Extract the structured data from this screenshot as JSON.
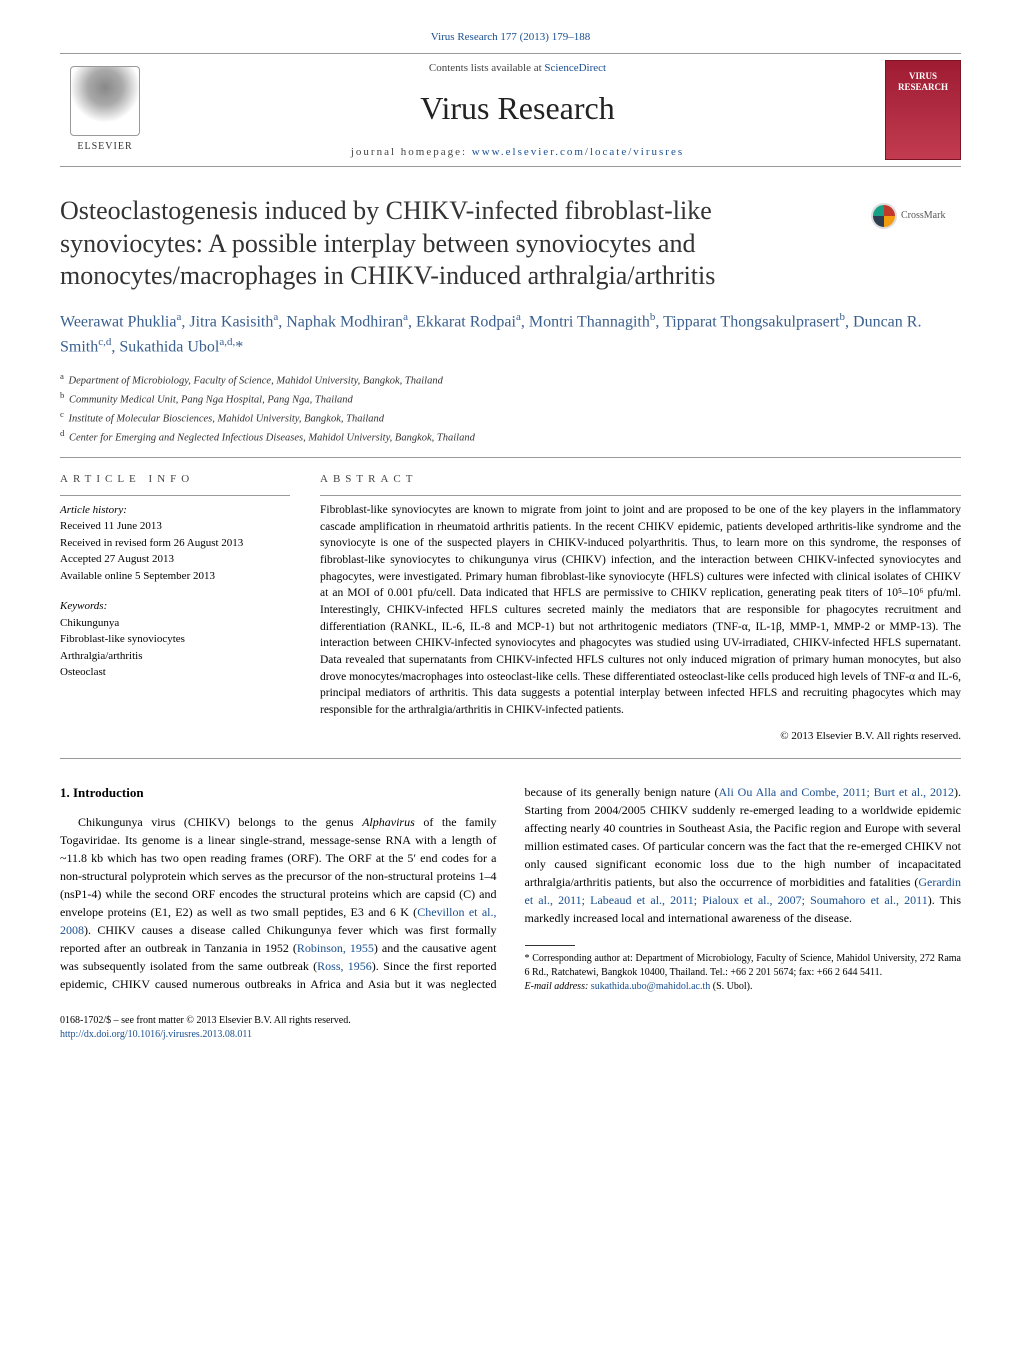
{
  "header": {
    "citation_link": "Virus Research 177 (2013) 179–188",
    "contents_prefix": "Contents lists available at ",
    "contents_link": "ScienceDirect",
    "journal": "Virus Research",
    "homepage_label": "journal homepage: ",
    "homepage_url": "www.elsevier.com/locate/virusres",
    "publisher": "ELSEVIER",
    "cover_title": "VIRUS RESEARCH"
  },
  "crossmark": {
    "label": "CrossMark"
  },
  "title": "Osteoclastogenesis induced by CHIKV-infected fibroblast-like synoviocytes: A possible interplay between synoviocytes and monocytes/macrophages in CHIKV-induced arthralgia/arthritis",
  "authors_html": "Weerawat Phuklia<sup>a</sup>, Jitra Kasisith<sup>a</sup>, Naphak Modhiran<sup>a</sup>, Ekkarat Rodpai<sup>a</sup>, Montri Thannagith<sup>b</sup>, Tipparat Thongsakulprasert<sup>b</sup>, Duncan R. Smith<sup>c,d</sup>, Sukathida Ubol<sup>a,d,</sup>*",
  "affiliations": [
    {
      "sup": "a",
      "text": "Department of Microbiology, Faculty of Science, Mahidol University, Bangkok, Thailand"
    },
    {
      "sup": "b",
      "text": "Community Medical Unit, Pang Nga Hospital, Pang Nga, Thailand"
    },
    {
      "sup": "c",
      "text": "Institute of Molecular Biosciences, Mahidol University, Bangkok, Thailand"
    },
    {
      "sup": "d",
      "text": "Center for Emerging and Neglected Infectious Diseases, Mahidol University, Bangkok, Thailand"
    }
  ],
  "article_info": {
    "label": "ARTICLE INFO",
    "history_label": "Article history:",
    "received": "Received 11 June 2013",
    "revised": "Received in revised form 26 August 2013",
    "accepted": "Accepted 27 August 2013",
    "online": "Available online 5 September 2013",
    "keywords_label": "Keywords:",
    "keywords": [
      "Chikungunya",
      "Fibroblast-like synoviocytes",
      "Arthralgia/arthritis",
      "Osteoclast"
    ]
  },
  "abstract": {
    "label": "ABSTRACT",
    "text": "Fibroblast-like synoviocytes are known to migrate from joint to joint and are proposed to be one of the key players in the inflammatory cascade amplification in rheumatoid arthritis patients. In the recent CHIKV epidemic, patients developed arthritis-like syndrome and the synoviocyte is one of the suspected players in CHIKV-induced polyarthritis. Thus, to learn more on this syndrome, the responses of fibroblast-like synoviocytes to chikungunya virus (CHIKV) infection, and the interaction between CHIKV-infected synoviocytes and phagocytes, were investigated. Primary human fibroblast-like synoviocyte (HFLS) cultures were infected with clinical isolates of CHIKV at an MOI of 0.001 pfu/cell. Data indicated that HFLS are permissive to CHIKV replication, generating peak titers of 10⁵–10⁶ pfu/ml. Interestingly, CHIKV-infected HFLS cultures secreted mainly the mediators that are responsible for phagocytes recruitment and differentiation (RANKL, IL-6, IL-8 and MCP-1) but not arthritogenic mediators (TNF-α, IL-1β, MMP-1, MMP-2 or MMP-13). The interaction between CHIKV-infected synoviocytes and phagocytes was studied using UV-irradiated, CHIKV-infected HFLS supernatant. Data revealed that supernatants from CHIKV-infected HFLS cultures not only induced migration of primary human monocytes, but also drove monocytes/macrophages into osteoclast-like cells. These differentiated osteoclast-like cells produced high levels of TNF-α and IL-6, principal mediators of arthritis. This data suggests a potential interplay between infected HFLS and recruiting phagocytes which may responsible for the arthralgia/arthritis in CHIKV-infected patients.",
    "copyright": "© 2013 Elsevier B.V. All rights reserved."
  },
  "body": {
    "heading": "1.  Introduction",
    "p1_pre": "Chikungunya virus (CHIKV) belongs to the genus ",
    "p1_ital1": "Alphavirus",
    "p1_mid1": " of the family Togaviridae. Its genome is a linear single-strand, message-sense RNA with a length of ~11.8 kb which has two open reading frames (ORF). The ORF at the 5′ end codes for a non-structural polyprotein which serves as the precursor of the non-structural proteins 1–4 (nsP1-4) while the second ORF encodes the structural proteins which are capsid (C) and envelope proteins (E1, E2) as well as two small peptides, E3 and 6 K (",
    "p1_link1": "Chevillon et al., 2008",
    "p1_post1": "). CHIKV causes a disease called Chikungunya fever which was first formally reported after an outbreak in Tanzania in 1952 (",
    "p1_link2": "Robinson, 1955",
    "p1_post2": ") and the causative agent was subsequently isolated from the same outbreak (",
    "p1_link3": "Ross, 1956",
    "p1_post3": "). Since the first reported epidemic, CHIKV caused numerous outbreaks in Africa and Asia but it was neglected because of its generally benign nature (",
    "p1_link4": "Ali Ou Alla and Combe, 2011; Burt et al., 2012",
    "p1_post4": "). Starting from 2004/2005 CHIKV suddenly re-emerged leading to a worldwide epidemic affecting nearly 40 countries in Southeast Asia, the Pacific region and Europe with several million estimated cases. Of particular concern was the fact that the re-emerged CHIKV not only caused significant economic loss due to the high number of incapacitated arthralgia/arthritis patients, but also the occurrence of morbidities and fatalities (",
    "p1_link5": "Gerardin et al., 2011; Labeaud et al., 2011; Pialoux et al., 2007; Soumahoro et al., 2011",
    "p1_post5": "). This markedly increased local and international awareness of the disease."
  },
  "footnote": {
    "corr": "* Corresponding author at: Department of Microbiology, Faculty of Science, Mahidol University, 272 Rama 6 Rd., Ratchatewi, Bangkok 10400, Thailand. Tel.: +66 2 201 5674; fax: +66 2 644 5411.",
    "email_label": "E-mail address: ",
    "email": "sukathida.ubo@mahidol.ac.th",
    "email_post": " (S. Ubol)."
  },
  "bottom": {
    "issn": "0168-1702/$ – see front matter © 2013 Elsevier B.V. All rights reserved.",
    "doi": "http://dx.doi.org/10.1016/j.virusres.2013.08.011"
  },
  "colors": {
    "link": "#1a4f8f",
    "author": "#3a5f8f",
    "cover_bg": "#9e1b32"
  }
}
